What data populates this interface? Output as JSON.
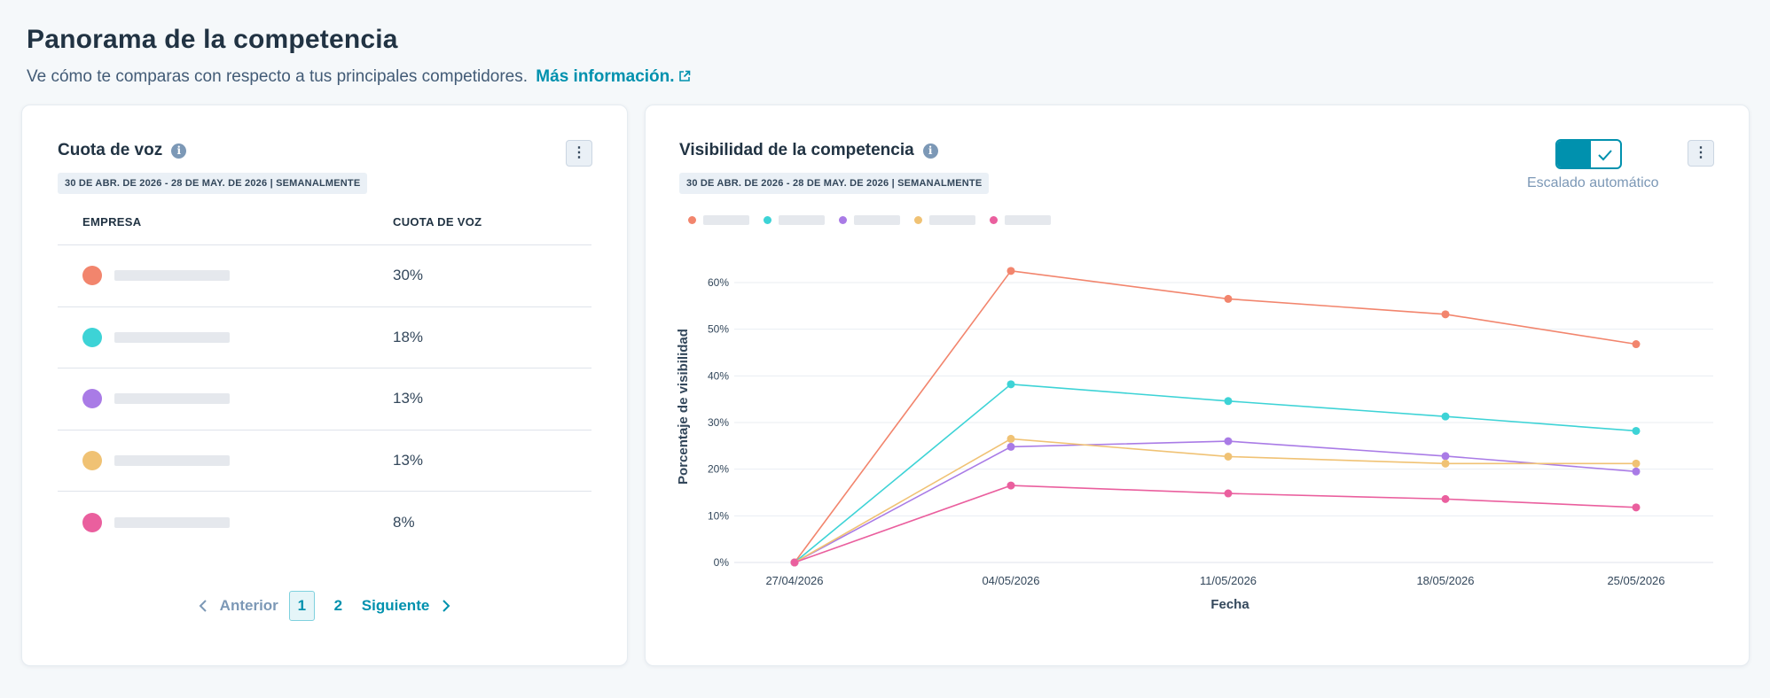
{
  "header": {
    "title": "Panorama de la competencia",
    "subtitle": "Ve cómo te comparas con respecto a tus principales competidores.",
    "link_label": "Más información."
  },
  "share_of_voice": {
    "title": "Cuota de voz",
    "date_range": "30 DE ABR. DE 2026 - 28 DE MAY. DE 2026 | SEMANALMENTE",
    "columns": [
      "EMPRESA",
      "CUOTA DE VOZ"
    ],
    "rows": [
      {
        "color": "#f2856d",
        "value": "30%"
      },
      {
        "color": "#3dd3d6",
        "value": "18%"
      },
      {
        "color": "#a97be6",
        "value": "13%"
      },
      {
        "color": "#f0c274",
        "value": "13%"
      },
      {
        "color": "#ea5f9e",
        "value": "8%"
      }
    ],
    "pagination": {
      "prev": "Anterior",
      "pages": [
        "1",
        "2"
      ],
      "next": "Siguiente",
      "current": "1"
    }
  },
  "visibility": {
    "title": "Visibilidad de la competencia",
    "date_range": "30 DE ABR. DE 2026 - 28 DE MAY. DE 2026 | SEMANALMENTE",
    "autoscale_label": "Escalado automático",
    "autoscale_on": true
  },
  "colors": {
    "accent": "#0091ae",
    "grid": "#e9edf2",
    "axis": "#dfe3eb"
  },
  "chart_data": {
    "type": "line",
    "x": [
      "27/04/2026",
      "04/05/2026",
      "11/05/2026",
      "18/05/2026",
      "25/05/2026"
    ],
    "xlabel": "Fecha",
    "ylabel": "Porcentaje de visibilidad",
    "ylim": [
      0,
      60
    ],
    "yticks": [
      "0%",
      "10%",
      "20%",
      "30%",
      "40%",
      "50%",
      "60%"
    ],
    "grid": true,
    "legend_position": "top-left",
    "series": [
      {
        "color": "#f2856d",
        "values": [
          0,
          62.5,
          56.5,
          53.2,
          46.8
        ]
      },
      {
        "color": "#3dd3d6",
        "values": [
          0,
          38.2,
          34.6,
          31.3,
          28.2
        ]
      },
      {
        "color": "#a97be6",
        "values": [
          0,
          24.8,
          26.0,
          22.8,
          19.5
        ]
      },
      {
        "color": "#f0c274",
        "values": [
          0,
          26.5,
          22.7,
          21.2,
          21.2
        ]
      },
      {
        "color": "#ea5f9e",
        "values": [
          0,
          16.5,
          14.8,
          13.6,
          11.8
        ]
      }
    ]
  }
}
